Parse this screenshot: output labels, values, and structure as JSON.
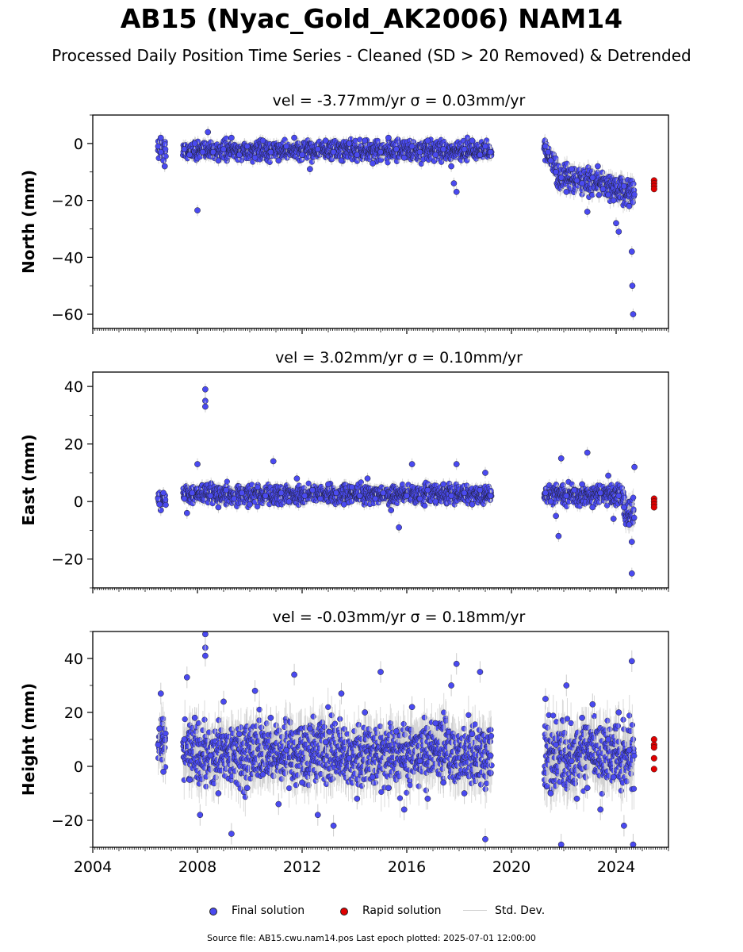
{
  "figure": {
    "title": "AB15 (Nyac_Gold_AK2006) NAM14",
    "subtitle": "Processed Daily Position Time Series - Cleaned (SD > 20 Removed) & Detrended",
    "source_line": "Source file: AB15.cwu.nam14.pos  Last epoch plotted: 2025-07-01 12:00:00"
  },
  "legend": {
    "items": [
      {
        "label": "Final solution",
        "color": "#4a4af0"
      },
      {
        "label": "Rapid solution",
        "color": "#e00000"
      },
      {
        "label": "Std. Dev.",
        "color": "#cfcfcf"
      }
    ]
  },
  "colors": {
    "final": "#4a4af0",
    "rapid": "#e00000",
    "std_dev": "#cccccc",
    "marker_edge": "#1a1a1a"
  },
  "chart_data": [
    {
      "type": "scatter",
      "title": "vel = -3.77mm/yr   σ = 0.03mm/yr",
      "ylabel": "North (mm)",
      "xlim": [
        2004.0,
        2026.0
      ],
      "ylim": [
        -65,
        10
      ],
      "yticks": [
        0,
        -20,
        -40,
        -60
      ],
      "xticks": [
        2004,
        2008,
        2012,
        2016,
        2020,
        2024
      ],
      "show_xticklabels": false,
      "series": [
        {
          "name": "Final solution",
          "points": [
            [
              2006.5,
              -1
            ],
            [
              2006.6,
              -3
            ],
            [
              2006.7,
              -6
            ],
            [
              2006.75,
              -8
            ],
            [
              2006.6,
              2
            ],
            [
              2007.5,
              -2
            ],
            [
              2007.7,
              -4
            ],
            [
              2007.9,
              0
            ],
            [
              2008.0,
              -23.5
            ],
            [
              2008.2,
              -3
            ],
            [
              2008.4,
              4
            ],
            [
              2008.6,
              -3
            ],
            [
              2008.8,
              -6
            ],
            [
              2009.0,
              -2
            ],
            [
              2009.3,
              2
            ],
            [
              2009.6,
              -4
            ],
            [
              2009.9,
              -1
            ],
            [
              2010.2,
              -5
            ],
            [
              2010.5,
              1
            ],
            [
              2010.8,
              -3
            ],
            [
              2011.1,
              -6
            ],
            [
              2011.4,
              -1
            ],
            [
              2011.7,
              2
            ],
            [
              2012.0,
              -4
            ],
            [
              2012.3,
              -9
            ],
            [
              2012.6,
              -2
            ],
            [
              2012.9,
              1
            ],
            [
              2013.2,
              -3
            ],
            [
              2013.5,
              -6
            ],
            [
              2013.8,
              0
            ],
            [
              2014.1,
              -4
            ],
            [
              2014.4,
              1
            ],
            [
              2014.7,
              -7
            ],
            [
              2015.0,
              -3
            ],
            [
              2015.3,
              2
            ],
            [
              2015.6,
              -2
            ],
            [
              2015.9,
              -5
            ],
            [
              2016.2,
              -1
            ],
            [
              2016.5,
              -3
            ],
            [
              2016.8,
              1
            ],
            [
              2017.1,
              -4
            ],
            [
              2017.4,
              -2
            ],
            [
              2017.7,
              -8
            ],
            [
              2017.8,
              -14
            ],
            [
              2017.9,
              -17
            ],
            [
              2018.2,
              -2
            ],
            [
              2018.5,
              1
            ],
            [
              2018.8,
              -4
            ],
            [
              2019.0,
              -1
            ],
            [
              2019.2,
              -3
            ],
            [
              2021.3,
              -1
            ],
            [
              2021.4,
              -3
            ],
            [
              2021.5,
              -6
            ],
            [
              2021.7,
              -10
            ],
            [
              2021.9,
              -12
            ],
            [
              2022.1,
              -17
            ],
            [
              2022.3,
              -9
            ],
            [
              2022.5,
              -13
            ],
            [
              2022.7,
              -14
            ],
            [
              2022.9,
              -24
            ],
            [
              2023.1,
              -12
            ],
            [
              2023.3,
              -8
            ],
            [
              2023.5,
              -16
            ],
            [
              2023.7,
              -18
            ],
            [
              2023.9,
              -20
            ],
            [
              2024.0,
              -28
            ],
            [
              2024.1,
              -31
            ],
            [
              2024.3,
              -15
            ],
            [
              2024.5,
              -22
            ],
            [
              2024.6,
              -38
            ],
            [
              2024.62,
              -50
            ],
            [
              2024.65,
              -60
            ]
          ]
        },
        {
          "name": "Rapid solution",
          "points": [
            [
              2025.45,
              -13
            ],
            [
              2025.45,
              -14
            ],
            [
              2025.45,
              -15
            ],
            [
              2025.45,
              -16
            ]
          ]
        }
      ]
    },
    {
      "type": "scatter",
      "title": "vel = 3.02mm/yr   σ = 0.10mm/yr",
      "ylabel": "East (mm)",
      "xlim": [
        2004.0,
        2026.0
      ],
      "ylim": [
        -30,
        45
      ],
      "yticks": [
        40,
        20,
        0,
        -20
      ],
      "xticks": [
        2004,
        2008,
        2012,
        2016,
        2020,
        2024
      ],
      "show_xticklabels": false,
      "series": [
        {
          "name": "Final solution",
          "points": [
            [
              2006.5,
              1
            ],
            [
              2006.6,
              -3
            ],
            [
              2006.7,
              3
            ],
            [
              2006.55,
              -1
            ],
            [
              2007.5,
              1
            ],
            [
              2007.6,
              -4
            ],
            [
              2007.8,
              3
            ],
            [
              2008.0,
              13
            ],
            [
              2008.3,
              39
            ],
            [
              2008.3,
              35
            ],
            [
              2008.3,
              33
            ],
            [
              2008.5,
              2
            ],
            [
              2008.8,
              -2
            ],
            [
              2009.1,
              4
            ],
            [
              2009.4,
              1
            ],
            [
              2009.7,
              3
            ],
            [
              2010.0,
              -1
            ],
            [
              2010.3,
              5
            ],
            [
              2010.6,
              2
            ],
            [
              2010.9,
              14
            ],
            [
              2011.2,
              3
            ],
            [
              2011.5,
              0
            ],
            [
              2011.8,
              8
            ],
            [
              2012.1,
              2
            ],
            [
              2012.4,
              4
            ],
            [
              2012.7,
              1
            ],
            [
              2013.0,
              6
            ],
            [
              2013.3,
              3
            ],
            [
              2013.6,
              -1
            ],
            [
              2013.9,
              5
            ],
            [
              2014.2,
              2
            ],
            [
              2014.5,
              8
            ],
            [
              2014.8,
              1
            ],
            [
              2015.1,
              3
            ],
            [
              2015.4,
              -3
            ],
            [
              2015.7,
              -9
            ],
            [
              2016.0,
              2
            ],
            [
              2016.2,
              13
            ],
            [
              2016.5,
              1
            ],
            [
              2016.8,
              4
            ],
            [
              2017.1,
              0
            ],
            [
              2017.4,
              6
            ],
            [
              2017.7,
              2
            ],
            [
              2017.9,
              13
            ],
            [
              2018.2,
              3
            ],
            [
              2018.5,
              -1
            ],
            [
              2018.8,
              4
            ],
            [
              2019.0,
              10
            ],
            [
              2019.2,
              2
            ],
            [
              2021.3,
              3
            ],
            [
              2021.5,
              0
            ],
            [
              2021.7,
              -5
            ],
            [
              2021.8,
              -12
            ],
            [
              2021.9,
              15
            ],
            [
              2022.1,
              2
            ],
            [
              2022.4,
              4
            ],
            [
              2022.7,
              6
            ],
            [
              2022.9,
              17
            ],
            [
              2023.1,
              -2
            ],
            [
              2023.4,
              3
            ],
            [
              2023.7,
              9
            ],
            [
              2023.9,
              -6
            ],
            [
              2024.1,
              2
            ],
            [
              2024.3,
              -2
            ],
            [
              2024.5,
              -8
            ],
            [
              2024.6,
              -14
            ],
            [
              2024.6,
              -25
            ],
            [
              2024.7,
              12
            ]
          ]
        },
        {
          "name": "Rapid solution",
          "points": [
            [
              2025.45,
              1
            ],
            [
              2025.45,
              0
            ],
            [
              2025.45,
              -1
            ],
            [
              2025.45,
              -2
            ]
          ]
        }
      ]
    },
    {
      "type": "scatter",
      "title": "vel = -0.03mm/yr   σ = 0.18mm/yr",
      "ylabel": "Height (mm)",
      "xlim": [
        2004.0,
        2026.0
      ],
      "ylim": [
        -30,
        50
      ],
      "yticks": [
        40,
        20,
        0,
        -20
      ],
      "xticks": [
        2004,
        2008,
        2012,
        2016,
        2020,
        2024
      ],
      "show_xticklabels": true,
      "series": [
        {
          "name": "Final solution",
          "points": [
            [
              2006.5,
              8
            ],
            [
              2006.6,
              27
            ],
            [
              2006.7,
              -2
            ],
            [
              2006.55,
              14
            ],
            [
              2007.5,
              10
            ],
            [
              2007.6,
              33
            ],
            [
              2007.7,
              -5
            ],
            [
              2007.9,
              18
            ],
            [
              2008.1,
              -18
            ],
            [
              2008.3,
              49
            ],
            [
              2008.3,
              44
            ],
            [
              2008.3,
              41
            ],
            [
              2008.5,
              4
            ],
            [
              2008.8,
              -10
            ],
            [
              2009.0,
              24
            ],
            [
              2009.3,
              -25
            ],
            [
              2009.6,
              12
            ],
            [
              2009.9,
              -8
            ],
            [
              2010.2,
              28
            ],
            [
              2010.5,
              -3
            ],
            [
              2010.8,
              18
            ],
            [
              2011.1,
              -14
            ],
            [
              2011.4,
              6
            ],
            [
              2011.7,
              34
            ],
            [
              2012.0,
              -6
            ],
            [
              2012.3,
              14
            ],
            [
              2012.6,
              -18
            ],
            [
              2012.9,
              9
            ],
            [
              2013.2,
              -22
            ],
            [
              2013.5,
              27
            ],
            [
              2013.8,
              3
            ],
            [
              2014.1,
              -12
            ],
            [
              2014.4,
              20
            ],
            [
              2014.7,
              -4
            ],
            [
              2015.0,
              35
            ],
            [
              2015.3,
              -8
            ],
            [
              2015.6,
              13
            ],
            [
              2015.9,
              -16
            ],
            [
              2016.2,
              22
            ],
            [
              2016.5,
              2
            ],
            [
              2016.8,
              -12
            ],
            [
              2017.1,
              16
            ],
            [
              2017.4,
              -6
            ],
            [
              2017.7,
              30
            ],
            [
              2017.9,
              38
            ],
            [
              2018.2,
              -10
            ],
            [
              2018.5,
              12
            ],
            [
              2018.8,
              35
            ],
            [
              2019.0,
              -27
            ],
            [
              2019.2,
              4
            ],
            [
              2021.3,
              25
            ],
            [
              2021.5,
              -10
            ],
            [
              2021.7,
              8
            ],
            [
              2021.9,
              -29
            ],
            [
              2022.1,
              30
            ],
            [
              2022.3,
              2
            ],
            [
              2022.5,
              -12
            ],
            [
              2022.7,
              18
            ],
            [
              2022.9,
              -8
            ],
            [
              2023.1,
              23
            ],
            [
              2023.4,
              -16
            ],
            [
              2023.7,
              10
            ],
            [
              2023.9,
              -4
            ],
            [
              2024.1,
              20
            ],
            [
              2024.3,
              -22
            ],
            [
              2024.5,
              6
            ],
            [
              2024.6,
              39
            ],
            [
              2024.65,
              -29
            ]
          ]
        },
        {
          "name": "Rapid solution",
          "points": [
            [
              2025.45,
              10
            ],
            [
              2025.45,
              8
            ],
            [
              2025.45,
              7
            ],
            [
              2025.45,
              3
            ],
            [
              2025.45,
              -1
            ]
          ]
        }
      ]
    }
  ]
}
